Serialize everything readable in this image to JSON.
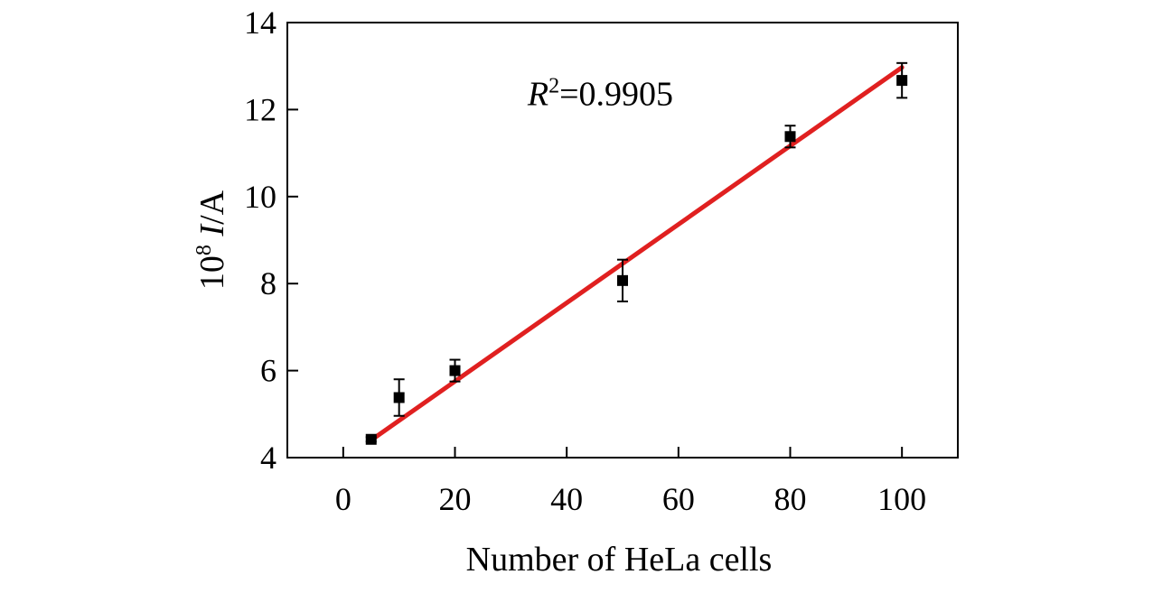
{
  "chart_data": {
    "type": "scatter",
    "title": "",
    "xlabel": "Number of HeLa cells",
    "ylabel": {
      "base": "10",
      "exponent": "8",
      "variable": "I",
      "unit": "/A"
    },
    "xlim": [
      -10,
      110
    ],
    "ylim": [
      4,
      14
    ],
    "xticks": [
      "0",
      "20",
      "40",
      "60",
      "80",
      "100"
    ],
    "yticks": [
      "4",
      "6",
      "8",
      "10",
      "12",
      "14"
    ],
    "grid": false,
    "legend": "none",
    "series": [
      {
        "x": [
          5,
          10,
          20,
          50,
          80,
          100
        ],
        "y": [
          4.42,
          5.38,
          6.0,
          8.07,
          11.38,
          12.67
        ],
        "error": [
          0.05,
          0.42,
          0.25,
          0.48,
          0.25,
          0.4
        ],
        "marker": "square",
        "color": "#000000"
      }
    ],
    "fit_line": {
      "x": [
        5,
        100
      ],
      "y": [
        4.4,
        12.97
      ],
      "color": "#e02020"
    },
    "annotation": {
      "variable": "R",
      "exponent": "2",
      "value": "=0.9905",
      "x": 33,
      "y": 12.35
    }
  }
}
